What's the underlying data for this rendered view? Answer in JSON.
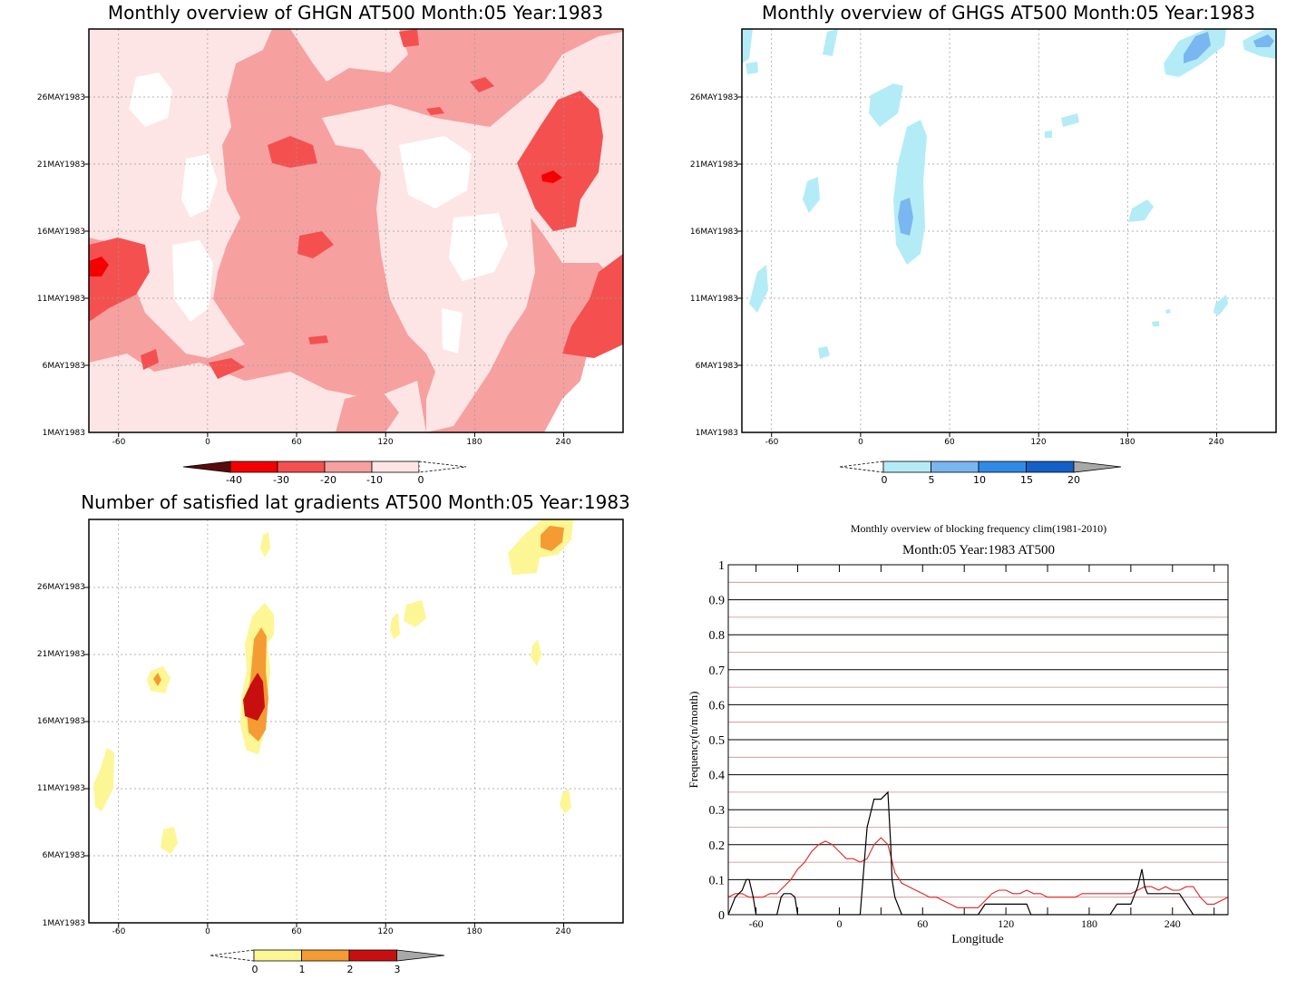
{
  "panels": [
    {
      "id": "ghgn",
      "title": "Monthly overview of GHGN AT500 Month:05 Year:1983",
      "x_ticks": [
        "-60",
        "0",
        "60",
        "120",
        "180",
        "240"
      ],
      "y_ticks": [
        "1MAY1983",
        "6MAY1983",
        "11MAY1983",
        "16MAY1983",
        "21MAY1983",
        "26MAY1983"
      ],
      "colorbar": {
        "labels": [
          "-40",
          "-30",
          "-20",
          "-10",
          "0"
        ],
        "colors": [
          "#5a0a0a",
          "#f50000",
          "#f55050",
          "#f7a0a0",
          "#fde5e5",
          "#ffffff"
        ]
      }
    },
    {
      "id": "ghgs",
      "title": "Monthly overview of GHGS AT500 Month:05 Year:1983",
      "x_ticks": [
        "-60",
        "0",
        "60",
        "120",
        "180",
        "240"
      ],
      "y_ticks": [
        "1MAY1983",
        "6MAY1983",
        "11MAY1983",
        "16MAY1983",
        "21MAY1983",
        "26MAY1983"
      ],
      "colorbar": {
        "labels": [
          "0",
          "5",
          "10",
          "15",
          "20"
        ],
        "colors": [
          "#ffffff",
          "#b3ecf7",
          "#7ab6ef",
          "#2f8be6",
          "#1460c8",
          "#a8a8a8"
        ]
      }
    },
    {
      "id": "grad",
      "title": "Number of satisfied lat gradients AT500 Month:05 Year:1983",
      "x_ticks": [
        "-60",
        "0",
        "60",
        "120",
        "180",
        "240"
      ],
      "y_ticks": [
        "1MAY1983",
        "6MAY1983",
        "11MAY1983",
        "16MAY1983",
        "21MAY1983",
        "26MAY1983"
      ],
      "colorbar": {
        "labels": [
          "0",
          "1",
          "2",
          "3"
        ],
        "colors": [
          "#ffffff",
          "#fdf694",
          "#f59b33",
          "#c80f0f",
          "#a8a8a8"
        ]
      }
    }
  ],
  "colors": {
    "ghgn_light": "#fde5e5",
    "ghgn_mid": "#f7a0a0",
    "ghgn_strong": "#f55050",
    "ghgn_peak": "#f50000",
    "ghgs_light": "#b3ecf7",
    "ghgs_mid": "#7ab6ef",
    "grad_1": "#fdf694",
    "grad_2": "#f59b33",
    "grad_3": "#c80f0f",
    "freq_red": "#e32222",
    "freq_black": "#000000"
  },
  "chart_data": [
    {
      "type": "heatmap",
      "title": "Monthly overview of GHGN AT500 Month:05 Year:1983",
      "x_ticks": [
        -60,
        0,
        60,
        120,
        180,
        240
      ],
      "xlim": [
        -80,
        280
      ],
      "ylim": [
        "1MAY1983",
        "31MAY1983"
      ],
      "colorbar": [
        -40,
        -30,
        -20,
        -10,
        0
      ]
    },
    {
      "type": "heatmap",
      "title": "Monthly overview of GHGS AT500 Month:05 Year:1983",
      "x_ticks": [
        -60,
        0,
        60,
        120,
        180,
        240
      ],
      "xlim": [
        -80,
        280
      ],
      "ylim": [
        "1MAY1983",
        "31MAY1983"
      ],
      "colorbar": [
        0,
        5,
        10,
        15,
        20
      ]
    },
    {
      "type": "heatmap",
      "title": "Number of satisfied lat gradients AT500 Month:05 Year:1983",
      "x_ticks": [
        -60,
        0,
        60,
        120,
        180,
        240
      ],
      "xlim": [
        -80,
        280
      ],
      "ylim": [
        "1MAY1983",
        "31MAY1983"
      ],
      "colorbar": [
        0,
        1,
        2,
        3
      ]
    },
    {
      "type": "line",
      "title": "Monthly overview of blocking frequency clim(1981-2010)",
      "subtitle": "Month:05 Year:1983  AT500",
      "xlabel": "Longitude",
      "ylabel": "Frequency(n/month)",
      "xlim": [
        -80,
        280
      ],
      "ylim": [
        0,
        1
      ],
      "x_ticks": [
        "-60",
        "0",
        "60",
        "120",
        "180",
        "240"
      ],
      "y_ticks": [
        "0",
        "0.1",
        "0.2",
        "0.3",
        "0.4",
        "0.5",
        "0.6",
        "0.7",
        "0.8",
        "0.9",
        "1"
      ],
      "grid": true,
      "series": [
        {
          "color": "#e32222",
          "x": [
            -80,
            -75,
            -70,
            -65,
            -60,
            -55,
            -50,
            -45,
            -40,
            -35,
            -30,
            -25,
            -20,
            -15,
            -10,
            -5,
            0,
            5,
            10,
            15,
            20,
            25,
            30,
            35,
            40,
            45,
            50,
            55,
            60,
            65,
            70,
            75,
            80,
            85,
            90,
            95,
            100,
            105,
            110,
            115,
            120,
            125,
            130,
            135,
            140,
            145,
            150,
            155,
            160,
            165,
            170,
            175,
            180,
            185,
            190,
            195,
            200,
            205,
            210,
            215,
            220,
            225,
            230,
            235,
            240,
            245,
            250,
            255,
            260,
            265,
            270,
            275,
            280
          ],
          "y": [
            0.05,
            0.06,
            0.06,
            0.05,
            0.05,
            0.05,
            0.06,
            0.06,
            0.08,
            0.1,
            0.13,
            0.15,
            0.18,
            0.2,
            0.21,
            0.2,
            0.18,
            0.16,
            0.16,
            0.15,
            0.16,
            0.2,
            0.22,
            0.2,
            0.12,
            0.09,
            0.08,
            0.07,
            0.06,
            0.05,
            0.05,
            0.04,
            0.03,
            0.02,
            0.02,
            0.02,
            0.02,
            0.04,
            0.06,
            0.07,
            0.07,
            0.06,
            0.06,
            0.07,
            0.06,
            0.06,
            0.05,
            0.05,
            0.05,
            0.05,
            0.05,
            0.06,
            0.06,
            0.06,
            0.06,
            0.06,
            0.06,
            0.06,
            0.06,
            0.07,
            0.08,
            0.08,
            0.07,
            0.08,
            0.07,
            0.07,
            0.08,
            0.08,
            0.05,
            0.03,
            0.03,
            0.04,
            0.05
          ]
        },
        {
          "color": "#000000",
          "x": [
            -80,
            -75,
            -70,
            -67,
            -65,
            -62,
            -60,
            -45,
            -42,
            -40,
            -37,
            -35,
            -32,
            -30,
            15,
            18,
            20,
            25,
            28,
            30,
            35,
            37,
            38,
            40,
            45,
            50,
            60,
            100,
            105,
            110,
            115,
            120,
            125,
            130,
            135,
            138,
            140,
            145,
            150,
            155,
            160,
            195,
            200,
            205,
            210,
            215,
            218,
            220,
            222,
            225,
            230,
            235,
            240,
            245,
            250,
            255,
            260,
            280
          ],
          "y": [
            0,
            0.05,
            0.07,
            0.1,
            0.1,
            0.05,
            0,
            0,
            0.05,
            0.06,
            0.06,
            0.06,
            0.05,
            0,
            0,
            0.15,
            0.25,
            0.33,
            0.33,
            0.33,
            0.35,
            0.2,
            0.1,
            0.05,
            0,
            0,
            0,
            0,
            0.03,
            0.03,
            0.03,
            0.03,
            0.03,
            0.03,
            0.03,
            0,
            0,
            0,
            0,
            0,
            0,
            0,
            0.03,
            0.03,
            0.03,
            0.08,
            0.13,
            0.08,
            0.06,
            0.06,
            0.06,
            0.06,
            0.06,
            0.06,
            0.03,
            0,
            0,
            0
          ]
        }
      ]
    }
  ],
  "line_chart": {
    "title": "Monthly overview of blocking frequency clim(1981-2010)",
    "subtitle": "Month:05 Year:1983  AT500",
    "xlabel": "Longitude",
    "ylabel": "Frequency(n/month)"
  }
}
